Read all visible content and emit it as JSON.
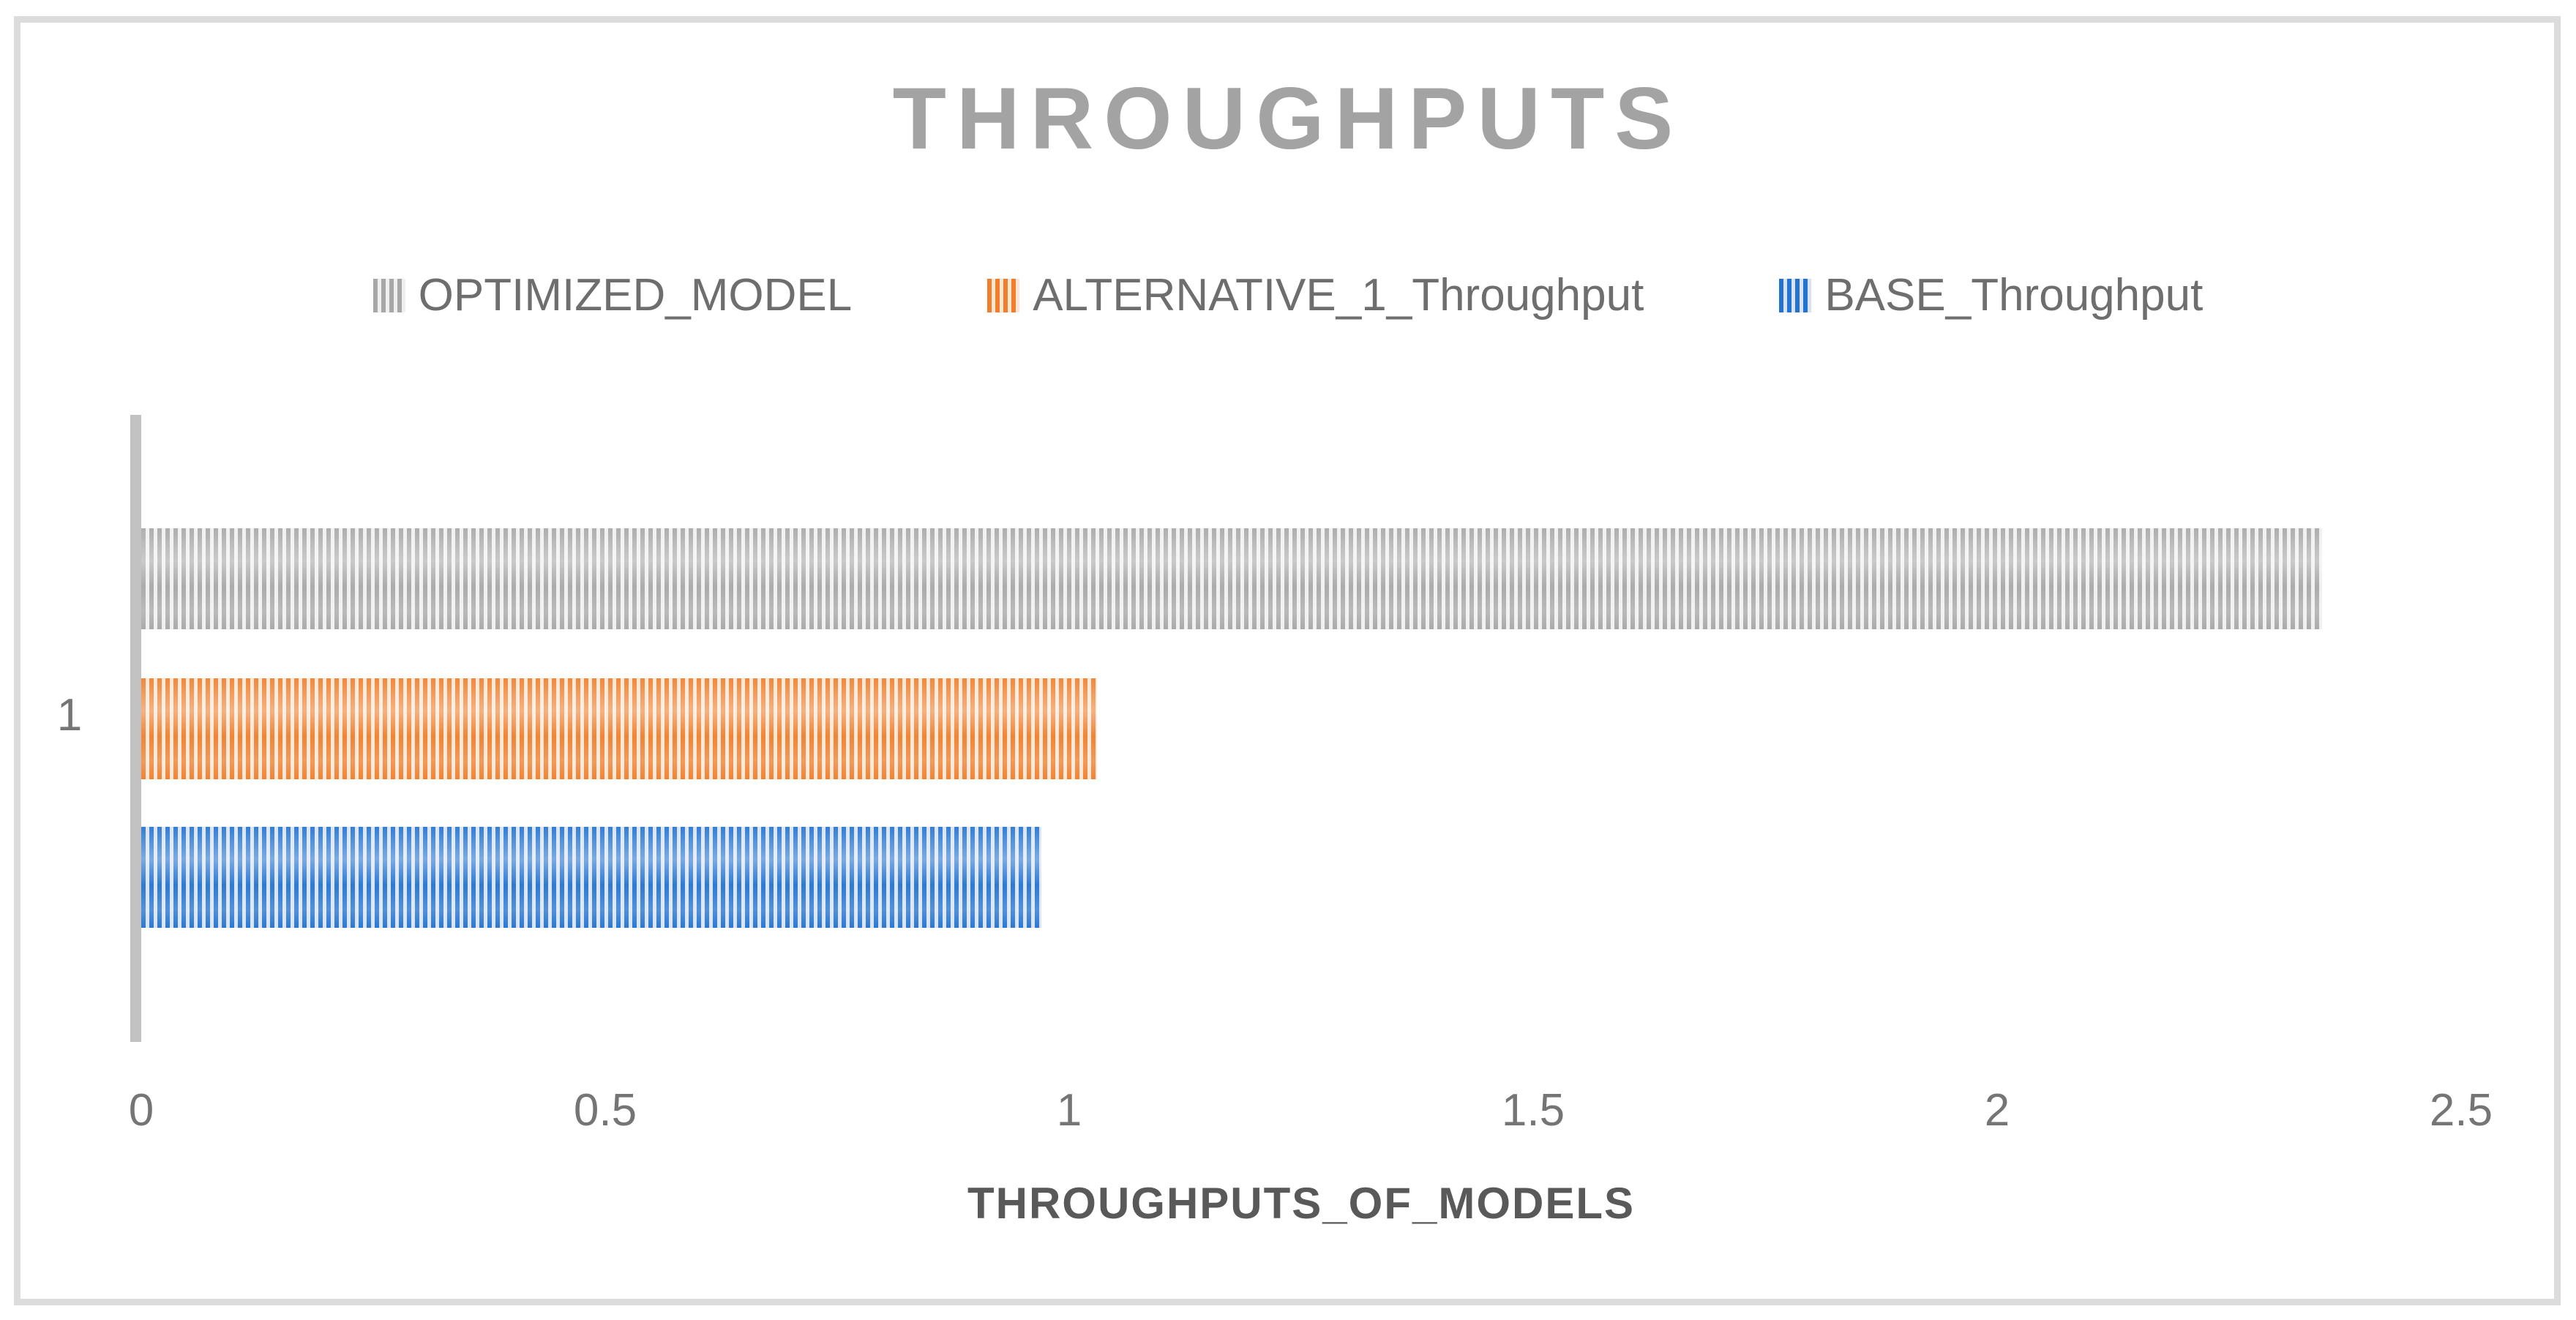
{
  "chart_data": {
    "type": "bar",
    "orientation": "horizontal",
    "title": "THROUGHPUTS",
    "xlabel": "THROUGHPUTS_OF_MODELS",
    "categories": [
      "1"
    ],
    "series": [
      {
        "name": "OPTIMIZED_MODEL",
        "values": [
          2.35
        ],
        "stripe_color": "#a7a7a7",
        "gap_color": "#efefef"
      },
      {
        "name": "ALTERNATIVE_1_Throughput",
        "values": [
          1.03
        ],
        "stripe_color": "#f07e2a",
        "gap_color": "#fbe5d4"
      },
      {
        "name": "BASE_Throughput",
        "values": [
          0.97
        ],
        "stripe_color": "#2273d2",
        "gap_color": "#d8e2f4"
      }
    ],
    "x_ticks": [
      "0",
      "0.5",
      "1",
      "1.5",
      "2",
      "2.5"
    ],
    "x_tick_values": [
      0,
      0.5,
      1,
      1.5,
      2,
      2.5
    ],
    "xlim": [
      0,
      2.5
    ],
    "legend_position": "top",
    "grid": false,
    "bar_pattern": "vertical-stripes",
    "title_color": "#a3a3a3",
    "axis_line_color": "#c2c2c2",
    "text_color": "#757575"
  }
}
